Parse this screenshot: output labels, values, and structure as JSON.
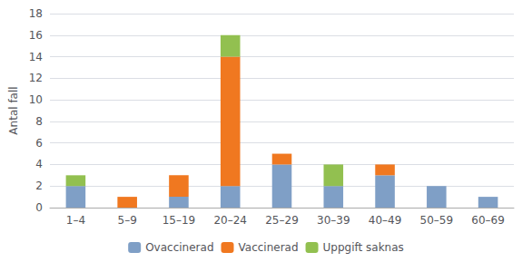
{
  "chart_data": {
    "type": "bar",
    "stacked": true,
    "ylabel": "Antal fall",
    "categories": [
      "1–4",
      "5–9",
      "15–19",
      "20–24",
      "25–29",
      "30–39",
      "40–49",
      "50–59",
      "60–69"
    ],
    "series": [
      {
        "name": "Ovaccinerad",
        "color": "#7f9fc6",
        "values": [
          2,
          0,
          1,
          2,
          4,
          2,
          3,
          2,
          1
        ]
      },
      {
        "name": "Vaccinerad",
        "color": "#f07820",
        "values": [
          0,
          1,
          2,
          12,
          1,
          0,
          1,
          0,
          0
        ]
      },
      {
        "name": "Uppgift saknas",
        "color": "#92c050",
        "values": [
          1,
          0,
          0,
          2,
          0,
          2,
          0,
          0,
          0
        ]
      }
    ],
    "ylim": [
      0,
      18
    ],
    "yticks": [
      0,
      2,
      4,
      6,
      8,
      10,
      12,
      14,
      16,
      18
    ],
    "grid": true,
    "legend": "bottom"
  }
}
